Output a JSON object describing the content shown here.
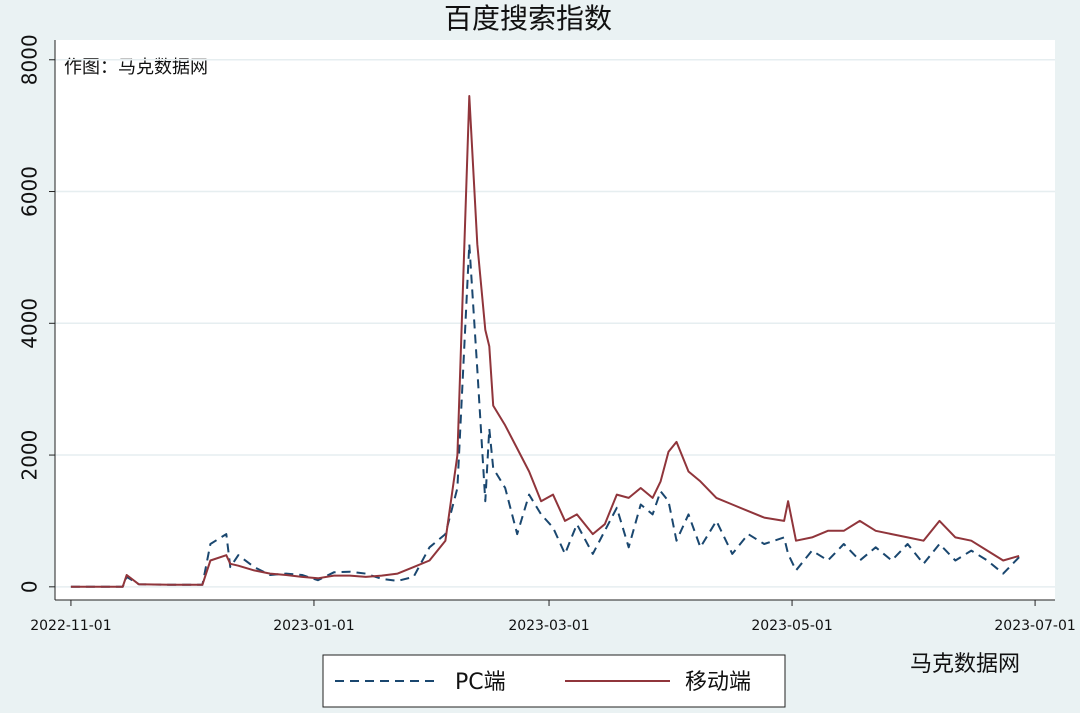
{
  "chart_data": {
    "type": "line",
    "title": "百度搜索指数",
    "note": "作图：马克数据网",
    "watermark": "马克数据网",
    "x": [
      "2022-11-01",
      "2022-11-14",
      "2022-11-15",
      "2022-11-18",
      "2022-11-26",
      "2022-12-04",
      "2022-12-06",
      "2022-12-10",
      "2022-12-11",
      "2022-12-13",
      "2022-12-17",
      "2022-12-21",
      "2022-12-25",
      "2022-12-29",
      "2023-01-02",
      "2023-01-06",
      "2023-01-10",
      "2023-01-14",
      "2023-01-18",
      "2023-01-22",
      "2023-01-26",
      "2023-01-30",
      "2023-02-03",
      "2023-02-06",
      "2023-02-09",
      "2023-02-11",
      "2023-02-13",
      "2023-02-14",
      "2023-02-15",
      "2023-02-18",
      "2023-02-21",
      "2023-02-24",
      "2023-02-27",
      "2023-03-02",
      "2023-03-05",
      "2023-03-08",
      "2023-03-12",
      "2023-03-15",
      "2023-03-18",
      "2023-03-21",
      "2023-03-24",
      "2023-03-27",
      "2023-03-29",
      "2023-03-31",
      "2023-04-02",
      "2023-04-05",
      "2023-04-08",
      "2023-04-12",
      "2023-04-16",
      "2023-04-20",
      "2023-04-24",
      "2023-04-29",
      "2023-04-30",
      "2023-05-02",
      "2023-05-06",
      "2023-05-10",
      "2023-05-14",
      "2023-05-18",
      "2023-05-22",
      "2023-05-26",
      "2023-05-30",
      "2023-06-03",
      "2023-06-07",
      "2023-06-11",
      "2023-06-15",
      "2023-06-19",
      "2023-06-23",
      "2023-06-27"
    ],
    "series": [
      {
        "name": "PC端",
        "color": "#1a476f",
        "dash": true,
        "values": [
          0,
          0,
          150,
          40,
          30,
          30,
          650,
          800,
          300,
          480,
          300,
          180,
          200,
          180,
          100,
          220,
          230,
          200,
          120,
          90,
          150,
          600,
          800,
          1500,
          5200,
          3300,
          1300,
          2400,
          1800,
          1500,
          800,
          1400,
          1100,
          900,
          500,
          950,
          500,
          850,
          1200,
          600,
          1250,
          1100,
          1450,
          1300,
          700,
          1100,
          600,
          1000,
          500,
          800,
          650,
          750,
          500,
          250,
          550,
          400,
          650,
          400,
          600,
          400,
          650,
          350,
          650,
          400,
          550,
          400,
          200,
          450
        ]
      },
      {
        "name": "移动端",
        "color": "#90353b",
        "dash": false,
        "values": [
          0,
          0,
          180,
          40,
          30,
          30,
          400,
          480,
          350,
          320,
          250,
          200,
          180,
          150,
          130,
          170,
          170,
          150,
          170,
          200,
          300,
          400,
          700,
          2000,
          7450,
          5200,
          3900,
          3650,
          2750,
          2450,
          2100,
          1750,
          1300,
          1400,
          1000,
          1100,
          800,
          950,
          1400,
          1350,
          1500,
          1350,
          1600,
          2050,
          2200,
          1750,
          1600,
          1350,
          1250,
          1150,
          1050,
          1000,
          1300,
          700,
          750,
          850,
          850,
          1000,
          850,
          800,
          750,
          700,
          1000,
          750,
          700,
          550,
          400,
          470
        ]
      }
    ],
    "xlim": [
      "2022-10-28",
      "2023-07-06"
    ],
    "xticks": [
      "2022-11-01",
      "2023-01-01",
      "2023-03-01",
      "2023-05-01",
      "2023-07-01"
    ],
    "ylim": [
      -200,
      8300
    ],
    "yticks": [
      0,
      2000,
      4000,
      6000,
      8000
    ],
    "grid": true
  }
}
